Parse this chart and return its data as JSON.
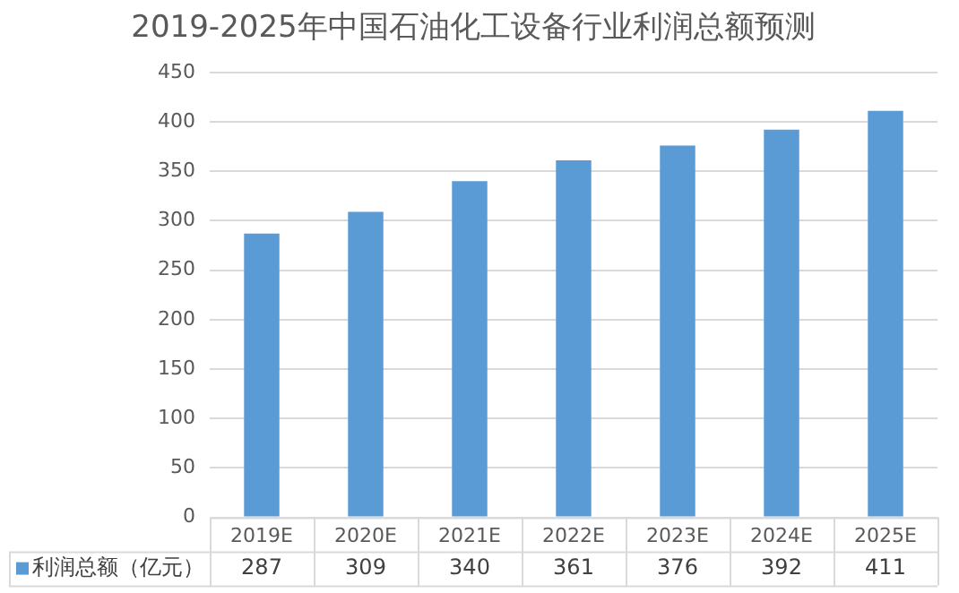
{
  "chart_data": {
    "type": "bar",
    "title": "2019-2025年中国石油化工设备行业利润总额预测",
    "categories": [
      "2019E",
      "2020E",
      "2021E",
      "2022E",
      "2023E",
      "2024E",
      "2025E"
    ],
    "series": [
      {
        "name": "利润总额（亿元）",
        "color": "#5b9bd5",
        "values": [
          287,
          309,
          340,
          361,
          376,
          392,
          411
        ]
      }
    ],
    "ylim": [
      0,
      450
    ],
    "yticks": [
      0,
      50,
      100,
      150,
      200,
      250,
      300,
      350,
      400,
      450
    ],
    "grid": "y",
    "data_labels": true,
    "legend": "bottom"
  }
}
